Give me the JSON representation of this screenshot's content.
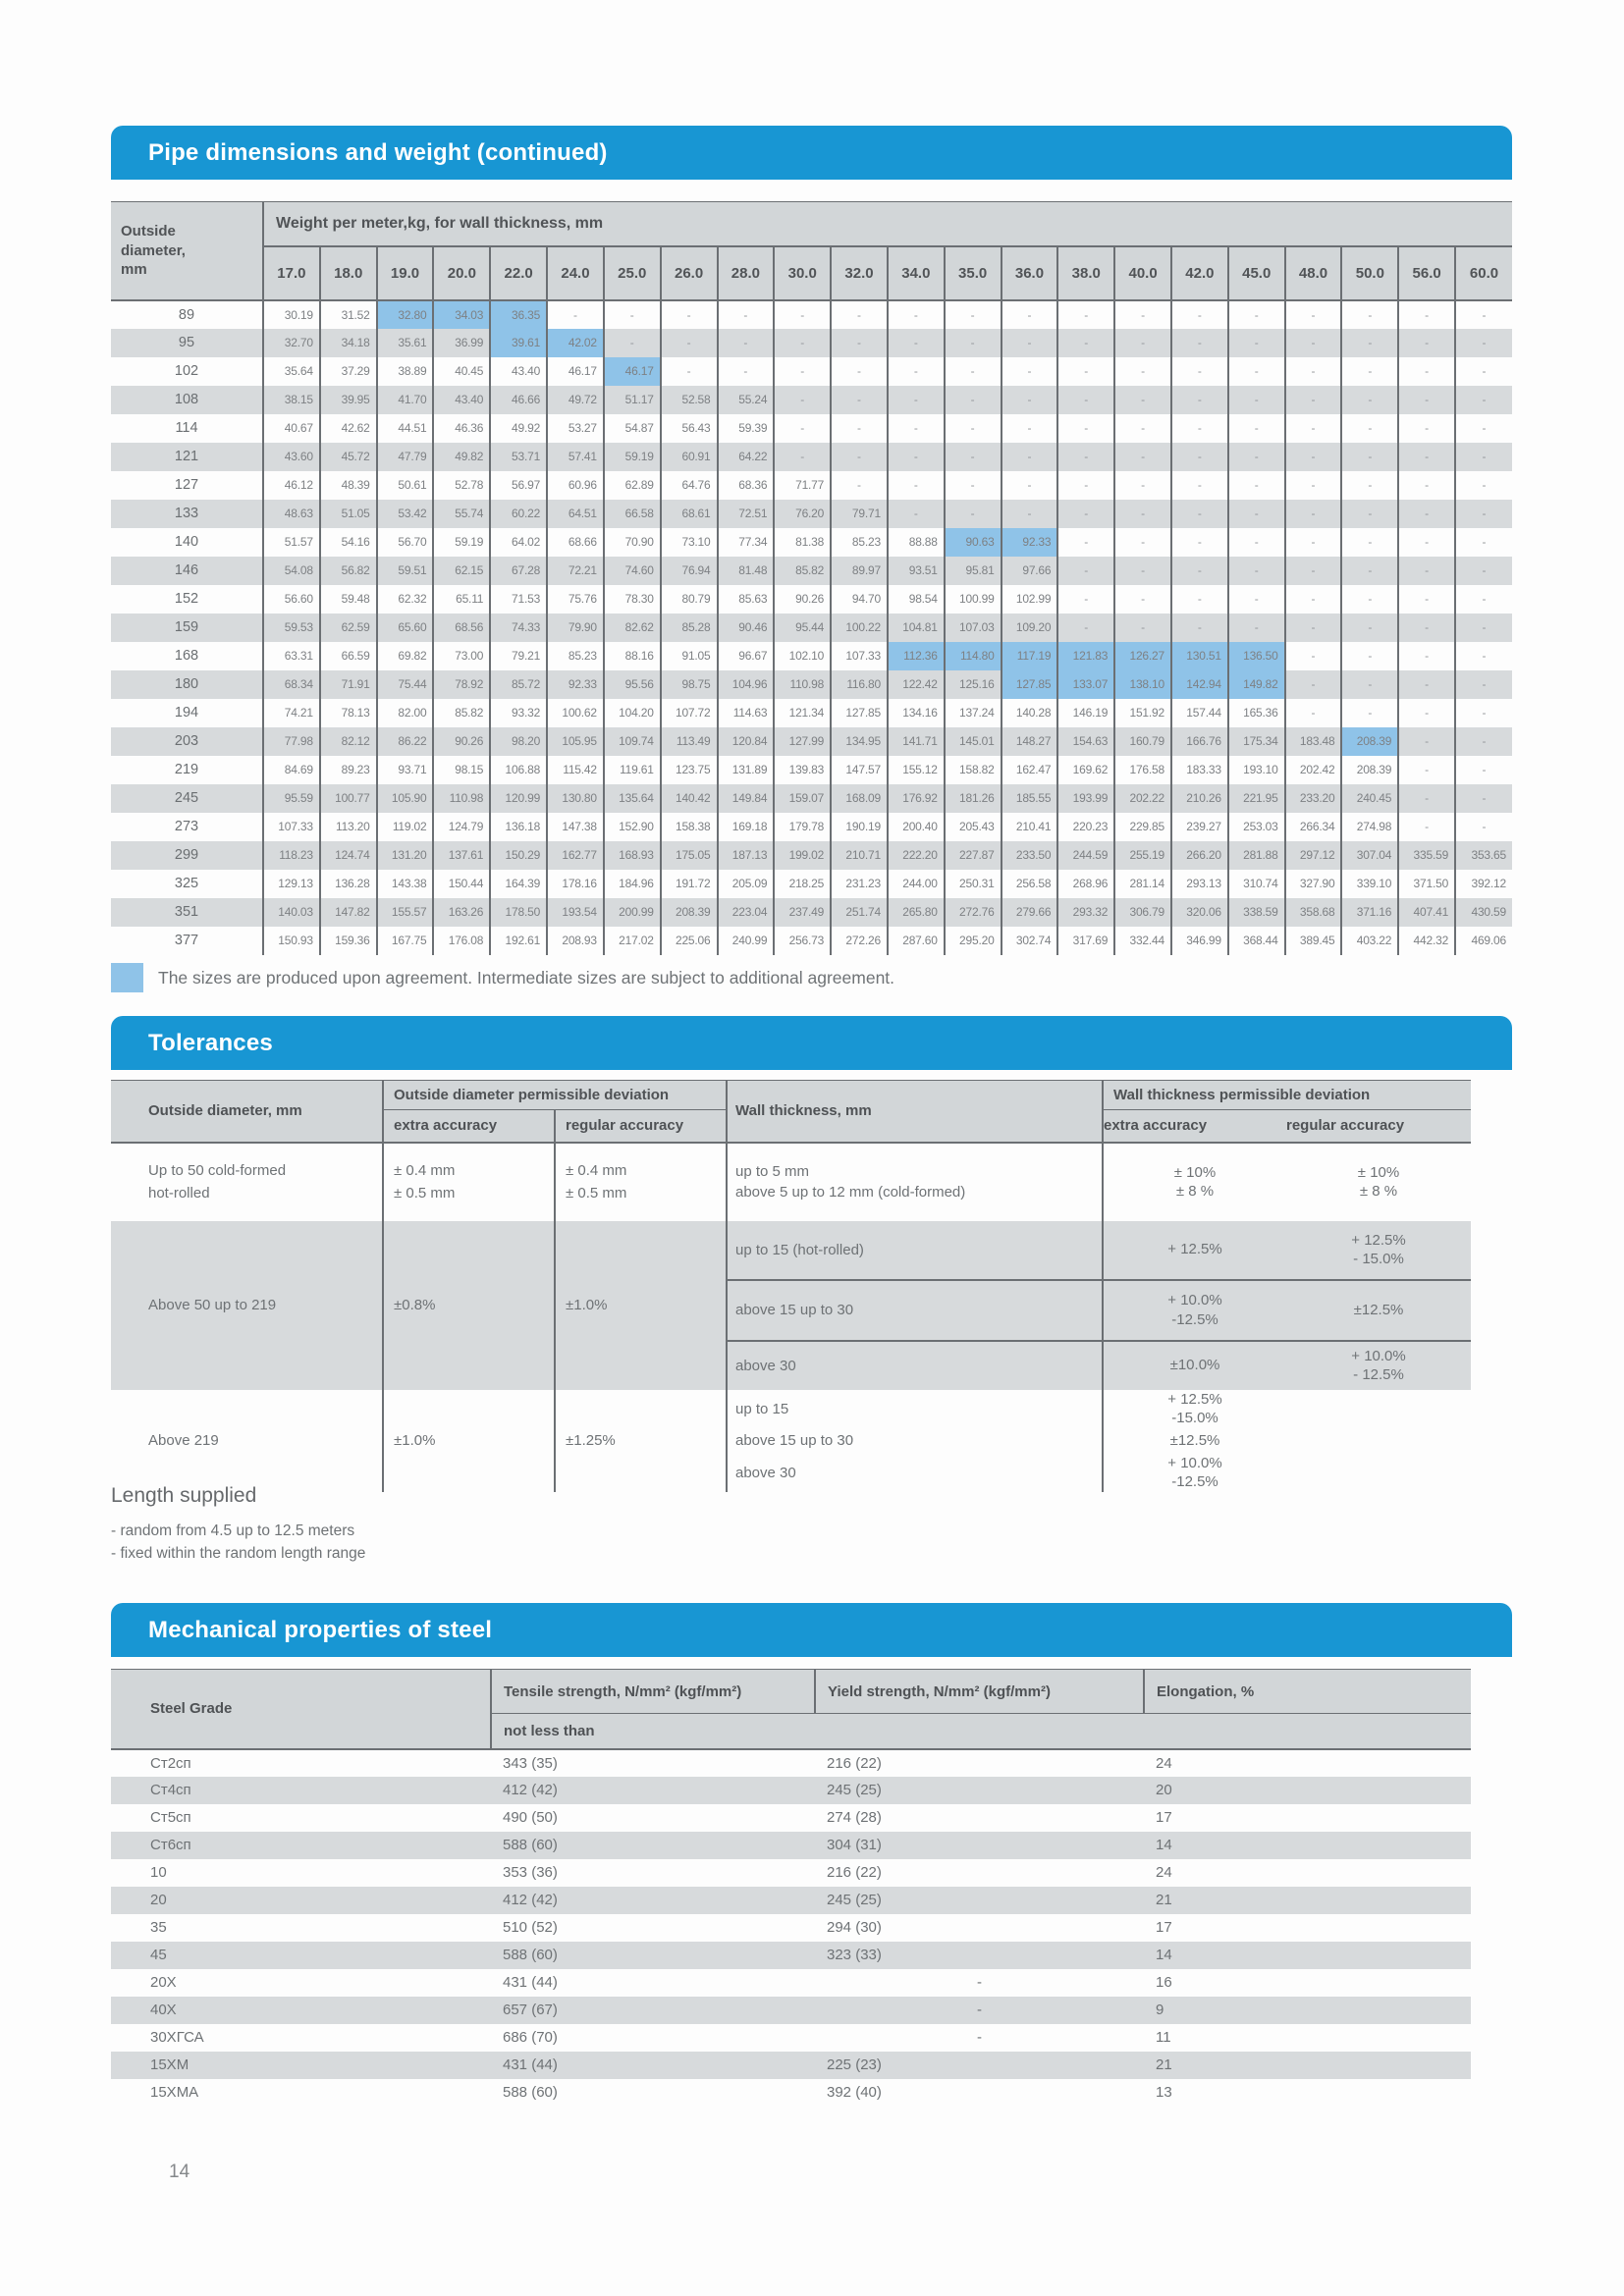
{
  "colors": {
    "accent_blue": "#1896d3",
    "highlight_blue": "#8fc3e8",
    "band_gray": "#d7dadc",
    "header_gray": "#d2d6d8",
    "border_dark": "#6b6f73"
  },
  "page_number": "14",
  "pipe_section": {
    "title": "Pipe dimensions and weight (continued)",
    "corner_header": "Outside\ndiameter,\nmm",
    "group_header": "Weight per meter,kg, for wall thickness, mm",
    "columns": [
      "17.0",
      "18.0",
      "19.0",
      "20.0",
      "22.0",
      "24.0",
      "25.0",
      "26.0",
      "28.0",
      "30.0",
      "32.0",
      "34.0",
      "35.0",
      "36.0",
      "38.0",
      "40.0",
      "42.0",
      "45.0",
      "48.0",
      "50.0",
      "56.0",
      "60.0"
    ],
    "rows": [
      {
        "d": "89",
        "v": [
          "30.19",
          "31.52",
          "32.80",
          "34.03",
          "36.35",
          "-",
          "-",
          "-",
          "-",
          "-",
          "-",
          "-",
          "-",
          "-",
          "-",
          "-",
          "-",
          "-",
          "-",
          "-",
          "-",
          "-"
        ],
        "hl": [
          2,
          3,
          4
        ]
      },
      {
        "d": "95",
        "v": [
          "32.70",
          "34.18",
          "35.61",
          "36.99",
          "39.61",
          "42.02",
          "-",
          "-",
          "-",
          "-",
          "-",
          "-",
          "-",
          "-",
          "-",
          "-",
          "-",
          "-",
          "-",
          "-",
          "-",
          "-"
        ],
        "hl": [
          4,
          5
        ]
      },
      {
        "d": "102",
        "v": [
          "35.64",
          "37.29",
          "38.89",
          "40.45",
          "43.40",
          "46.17",
          "46.17",
          "-",
          "-",
          "-",
          "-",
          "-",
          "-",
          "-",
          "-",
          "-",
          "-",
          "-",
          "-",
          "-",
          "-",
          "-"
        ],
        "hl": [
          6
        ]
      },
      {
        "d": "108",
        "v": [
          "38.15",
          "39.95",
          "41.70",
          "43.40",
          "46.66",
          "49.72",
          "51.17",
          "52.58",
          "55.24",
          "-",
          "-",
          "-",
          "-",
          "-",
          "-",
          "-",
          "-",
          "-",
          "-",
          "-",
          "-",
          "-"
        ],
        "hl": []
      },
      {
        "d": "114",
        "v": [
          "40.67",
          "42.62",
          "44.51",
          "46.36",
          "49.92",
          "53.27",
          "54.87",
          "56.43",
          "59.39",
          "-",
          "-",
          "-",
          "-",
          "-",
          "-",
          "-",
          "-",
          "-",
          "-",
          "-",
          "-",
          "-"
        ],
        "hl": []
      },
      {
        "d": "121",
        "v": [
          "43.60",
          "45.72",
          "47.79",
          "49.82",
          "53.71",
          "57.41",
          "59.19",
          "60.91",
          "64.22",
          "-",
          "-",
          "-",
          "-",
          "-",
          "-",
          "-",
          "-",
          "-",
          "-",
          "-",
          "-",
          "-"
        ],
        "hl": []
      },
      {
        "d": "127",
        "v": [
          "46.12",
          "48.39",
          "50.61",
          "52.78",
          "56.97",
          "60.96",
          "62.89",
          "64.76",
          "68.36",
          "71.77",
          "-",
          "-",
          "-",
          "-",
          "-",
          "-",
          "-",
          "-",
          "-",
          "-",
          "-",
          "-"
        ],
        "hl": []
      },
      {
        "d": "133",
        "v": [
          "48.63",
          "51.05",
          "53.42",
          "55.74",
          "60.22",
          "64.51",
          "66.58",
          "68.61",
          "72.51",
          "76.20",
          "79.71",
          "-",
          "-",
          "-",
          "-",
          "-",
          "-",
          "-",
          "-",
          "-",
          "-",
          "-"
        ],
        "hl": []
      },
      {
        "d": "140",
        "v": [
          "51.57",
          "54.16",
          "56.70",
          "59.19",
          "64.02",
          "68.66",
          "70.90",
          "73.10",
          "77.34",
          "81.38",
          "85.23",
          "88.88",
          "90.63",
          "92.33",
          "-",
          "-",
          "-",
          "-",
          "-",
          "-",
          "-",
          "-"
        ],
        "hl": [
          12,
          13
        ]
      },
      {
        "d": "146",
        "v": [
          "54.08",
          "56.82",
          "59.51",
          "62.15",
          "67.28",
          "72.21",
          "74.60",
          "76.94",
          "81.48",
          "85.82",
          "89.97",
          "93.51",
          "95.81",
          "97.66",
          "-",
          "-",
          "-",
          "-",
          "-",
          "-",
          "-",
          "-"
        ],
        "hl": []
      },
      {
        "d": "152",
        "v": [
          "56.60",
          "59.48",
          "62.32",
          "65.11",
          "71.53",
          "75.76",
          "78.30",
          "80.79",
          "85.63",
          "90.26",
          "94.70",
          "98.54",
          "100.99",
          "102.99",
          "-",
          "-",
          "-",
          "-",
          "-",
          "-",
          "-",
          "-"
        ],
        "hl": []
      },
      {
        "d": "159",
        "v": [
          "59.53",
          "62.59",
          "65.60",
          "68.56",
          "74.33",
          "79.90",
          "82.62",
          "85.28",
          "90.46",
          "95.44",
          "100.22",
          "104.81",
          "107.03",
          "109.20",
          "-",
          "-",
          "-",
          "-",
          "-",
          "-",
          "-",
          "-"
        ],
        "hl": []
      },
      {
        "d": "168",
        "v": [
          "63.31",
          "66.59",
          "69.82",
          "73.00",
          "79.21",
          "85.23",
          "88.16",
          "91.05",
          "96.67",
          "102.10",
          "107.33",
          "112.36",
          "114.80",
          "117.19",
          "121.83",
          "126.27",
          "130.51",
          "136.50",
          "-",
          "-",
          "-",
          "-"
        ],
        "hl": [
          11,
          12,
          13,
          14,
          15,
          16,
          17
        ]
      },
      {
        "d": "180",
        "v": [
          "68.34",
          "71.91",
          "75.44",
          "78.92",
          "85.72",
          "92.33",
          "95.56",
          "98.75",
          "104.96",
          "110.98",
          "116.80",
          "122.42",
          "125.16",
          "127.85",
          "133.07",
          "138.10",
          "142.94",
          "149.82",
          "-",
          "-",
          "-",
          "-"
        ],
        "hl": [
          13,
          14,
          15,
          16,
          17
        ]
      },
      {
        "d": "194",
        "v": [
          "74.21",
          "78.13",
          "82.00",
          "85.82",
          "93.32",
          "100.62",
          "104.20",
          "107.72",
          "114.63",
          "121.34",
          "127.85",
          "134.16",
          "137.24",
          "140.28",
          "146.19",
          "151.92",
          "157.44",
          "165.36",
          "-",
          "-",
          "-",
          "-"
        ],
        "hl": []
      },
      {
        "d": "203",
        "v": [
          "77.98",
          "82.12",
          "86.22",
          "90.26",
          "98.20",
          "105.95",
          "109.74",
          "113.49",
          "120.84",
          "127.99",
          "134.95",
          "141.71",
          "145.01",
          "148.27",
          "154.63",
          "160.79",
          "166.76",
          "175.34",
          "183.48",
          "208.39",
          "-",
          "-"
        ],
        "hl": [
          19
        ]
      },
      {
        "d": "219",
        "v": [
          "84.69",
          "89.23",
          "93.71",
          "98.15",
          "106.88",
          "115.42",
          "119.61",
          "123.75",
          "131.89",
          "139.83",
          "147.57",
          "155.12",
          "158.82",
          "162.47",
          "169.62",
          "176.58",
          "183.33",
          "193.10",
          "202.42",
          "208.39",
          "-",
          "-"
        ],
        "hl": []
      },
      {
        "d": "245",
        "v": [
          "95.59",
          "100.77",
          "105.90",
          "110.98",
          "120.99",
          "130.80",
          "135.64",
          "140.42",
          "149.84",
          "159.07",
          "168.09",
          "176.92",
          "181.26",
          "185.55",
          "193.99",
          "202.22",
          "210.26",
          "221.95",
          "233.20",
          "240.45",
          "-",
          "-"
        ],
        "hl": []
      },
      {
        "d": "273",
        "v": [
          "107.33",
          "113.20",
          "119.02",
          "124.79",
          "136.18",
          "147.38",
          "152.90",
          "158.38",
          "169.18",
          "179.78",
          "190.19",
          "200.40",
          "205.43",
          "210.41",
          "220.23",
          "229.85",
          "239.27",
          "253.03",
          "266.34",
          "274.98",
          "-",
          "-"
        ],
        "hl": []
      },
      {
        "d": "299",
        "v": [
          "118.23",
          "124.74",
          "131.20",
          "137.61",
          "150.29",
          "162.77",
          "168.93",
          "175.05",
          "187.13",
          "199.02",
          "210.71",
          "222.20",
          "227.87",
          "233.50",
          "244.59",
          "255.19",
          "266.20",
          "281.88",
          "297.12",
          "307.04",
          "335.59",
          "353.65"
        ],
        "hl": []
      },
      {
        "d": "325",
        "v": [
          "129.13",
          "136.28",
          "143.38",
          "150.44",
          "164.39",
          "178.16",
          "184.96",
          "191.72",
          "205.09",
          "218.25",
          "231.23",
          "244.00",
          "250.31",
          "256.58",
          "268.96",
          "281.14",
          "293.13",
          "310.74",
          "327.90",
          "339.10",
          "371.50",
          "392.12"
        ],
        "hl": []
      },
      {
        "d": "351",
        "v": [
          "140.03",
          "147.82",
          "155.57",
          "163.26",
          "178.50",
          "193.54",
          "200.99",
          "208.39",
          "223.04",
          "237.49",
          "251.74",
          "265.80",
          "272.76",
          "279.66",
          "293.32",
          "306.79",
          "320.06",
          "338.59",
          "358.68",
          "371.16",
          "407.41",
          "430.59"
        ],
        "hl": []
      },
      {
        "d": "377",
        "v": [
          "150.93",
          "159.36",
          "167.75",
          "176.08",
          "192.61",
          "208.93",
          "217.02",
          "225.06",
          "240.99",
          "256.73",
          "272.26",
          "287.60",
          "295.20",
          "302.74",
          "317.69",
          "332.44",
          "346.99",
          "368.44",
          "389.45",
          "403.22",
          "442.32",
          "469.06"
        ],
        "hl": []
      }
    ],
    "note": "The sizes are produced upon agreement. Intermediate sizes are subject to additional agreement."
  },
  "tolerances_section": {
    "title": "Tolerances",
    "headers": {
      "outside_diameter": "Outside diameter, mm",
      "od_deviation_group": "Outside diameter permissible deviation",
      "extra_accuracy": "extra accuracy",
      "regular_accuracy": "regular accuracy",
      "wall_thickness": "Wall thickness, mm",
      "wt_deviation_group": "Wall thickness permissible deviation",
      "wt_extra_accuracy": "extra accuracy",
      "wt_regular_accuracy": "regular accuracy"
    },
    "group1": {
      "od": "Up to 50 cold-formed\nhot-rolled",
      "od_extra": "± 0.4 mm\n± 0.5 mm",
      "od_regular": "± 0.4 mm\n± 0.5 mm",
      "wall": "up to 5 mm\nabove 5 up to 12 mm (cold-formed)",
      "wt_extra": "± 10%\n± 8 %",
      "wt_regular": "± 10%\n± 8 %"
    },
    "group2": {
      "od": "Above 50 up to 219",
      "od_extra": "±0.8%",
      "od_regular": "±1.0%",
      "wall_rows": [
        {
          "label": "up to 15 (hot-rolled)",
          "extra": "+ 12.5%",
          "regular": "+ 12.5%\n- 15.0%"
        },
        {
          "label": "above 15 up to 30",
          "extra": "+ 10.0%\n-12.5%",
          "regular": "±12.5%"
        },
        {
          "label": "above 30",
          "extra": "±10.0%",
          "regular": "+ 10.0%\n- 12.5%"
        }
      ]
    },
    "group3": {
      "od": "Above 219",
      "od_extra": "±1.0%",
      "od_regular": "±1.25%",
      "wall_rows": [
        {
          "label": "up to 15",
          "extra": "+ 12.5%\n-15.0%",
          "regular": ""
        },
        {
          "label": "above 15 up to 30",
          "extra": "±12.5%",
          "regular": ""
        },
        {
          "label": "above 30",
          "extra": "+ 10.0%\n-12.5%",
          "regular": ""
        }
      ]
    }
  },
  "length_supplied": {
    "title": "Length supplied",
    "items": [
      "- random from 4.5 up to 12.5 meters",
      "- fixed within the random length range"
    ]
  },
  "mechanical_section": {
    "title": "Mechanical properties of steel",
    "columns": [
      "Steel Grade",
      "Tensile strength, N/mm² (kgf/mm²)",
      "Yield strength, N/mm² (kgf/mm²)",
      "Elongation, %"
    ],
    "subheader": "not less than",
    "rows": [
      [
        "Ст2сп",
        "343 (35)",
        "216 (22)",
        "24"
      ],
      [
        "Ст4сп",
        "412 (42)",
        "245 (25)",
        "20"
      ],
      [
        "Ст5сп",
        "490 (50)",
        "274 (28)",
        "17"
      ],
      [
        "Ст6сп",
        "588 (60)",
        "304 (31)",
        "14"
      ],
      [
        "10",
        "353 (36)",
        "216 (22)",
        "24"
      ],
      [
        "20",
        "412 (42)",
        "245 (25)",
        "21"
      ],
      [
        "35",
        "510 (52)",
        "294 (30)",
        "17"
      ],
      [
        "45",
        "588 (60)",
        "323 (33)",
        "14"
      ],
      [
        "20Х",
        "431 (44)",
        "-",
        "16"
      ],
      [
        "40Х",
        "657 (67)",
        "-",
        "9"
      ],
      [
        "30ХГСА",
        "686 (70)",
        "-",
        "11"
      ],
      [
        "15ХМ",
        "431 (44)",
        "225 (23)",
        "21"
      ],
      [
        "15ХМА",
        "588 (60)",
        "392 (40)",
        "13"
      ]
    ]
  }
}
